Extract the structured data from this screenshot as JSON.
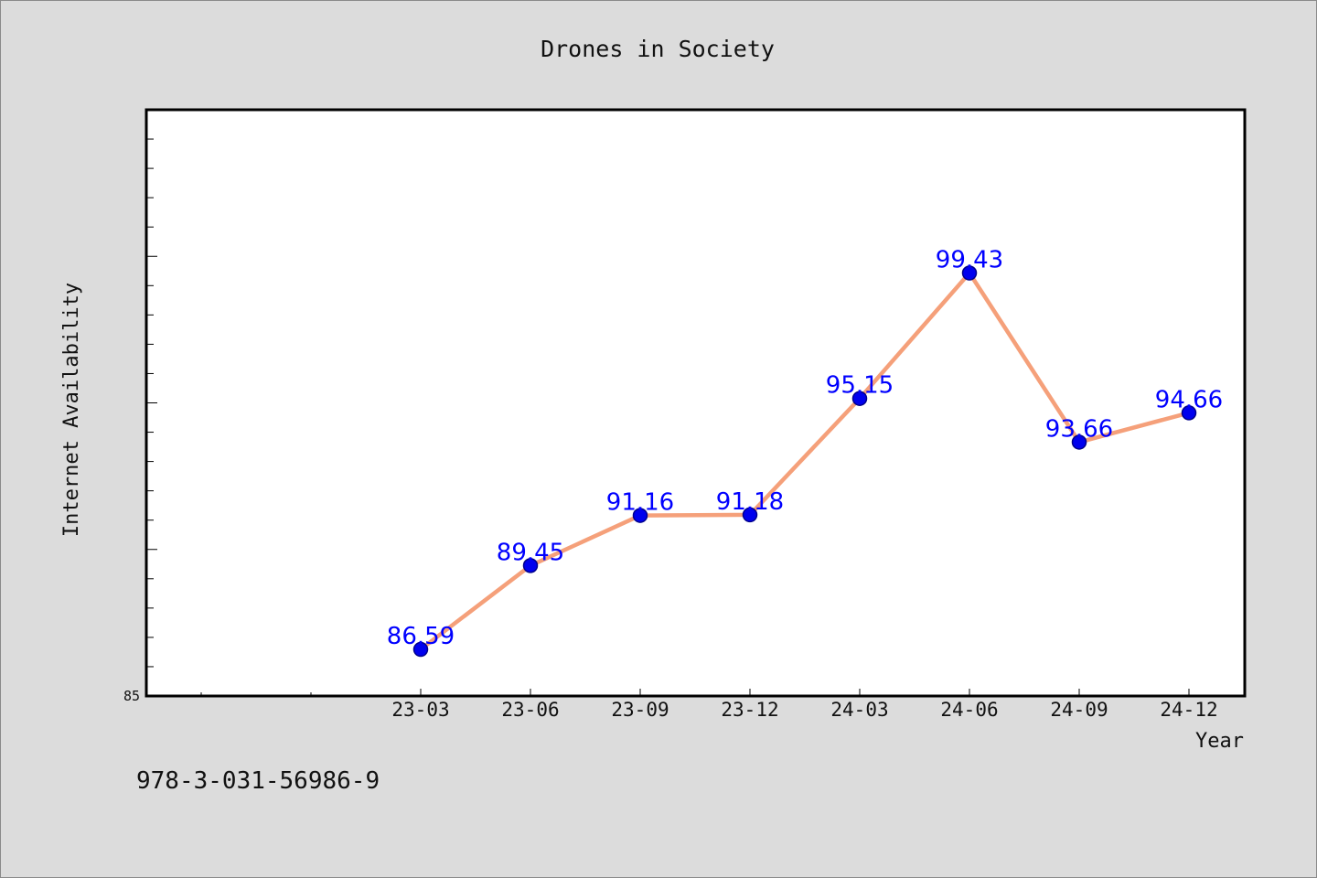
{
  "chart_data": {
    "type": "line",
    "title": "Drones in Society",
    "xlabel": "Year",
    "ylabel": "Internet Availability",
    "categories": [
      "23-03",
      "23-06",
      "23-09",
      "23-12",
      "24-03",
      "24-06",
      "24-09",
      "24-12"
    ],
    "series": [
      {
        "values": [
          86.59,
          89.45,
          91.16,
          91.18,
          95.15,
          99.43,
          93.66,
          94.66
        ]
      }
    ],
    "data_labels": [
      "86.59",
      "89.45",
      "91.16",
      "91.18",
      "95.15",
      "99.43",
      "93.66",
      "94.66"
    ],
    "ylim": [
      85,
      105
    ],
    "ytick_labels": [
      "85"
    ],
    "grid": false,
    "legend": "none",
    "colors": {
      "line": "#f5a07a",
      "marker": "#0000ee",
      "marker_edge": "#00008b",
      "data_label": "#0000ff",
      "plot_background": "#ffffff",
      "figure_background": "#dcdcdc"
    }
  },
  "footnote": "978-3-031-56986-9"
}
